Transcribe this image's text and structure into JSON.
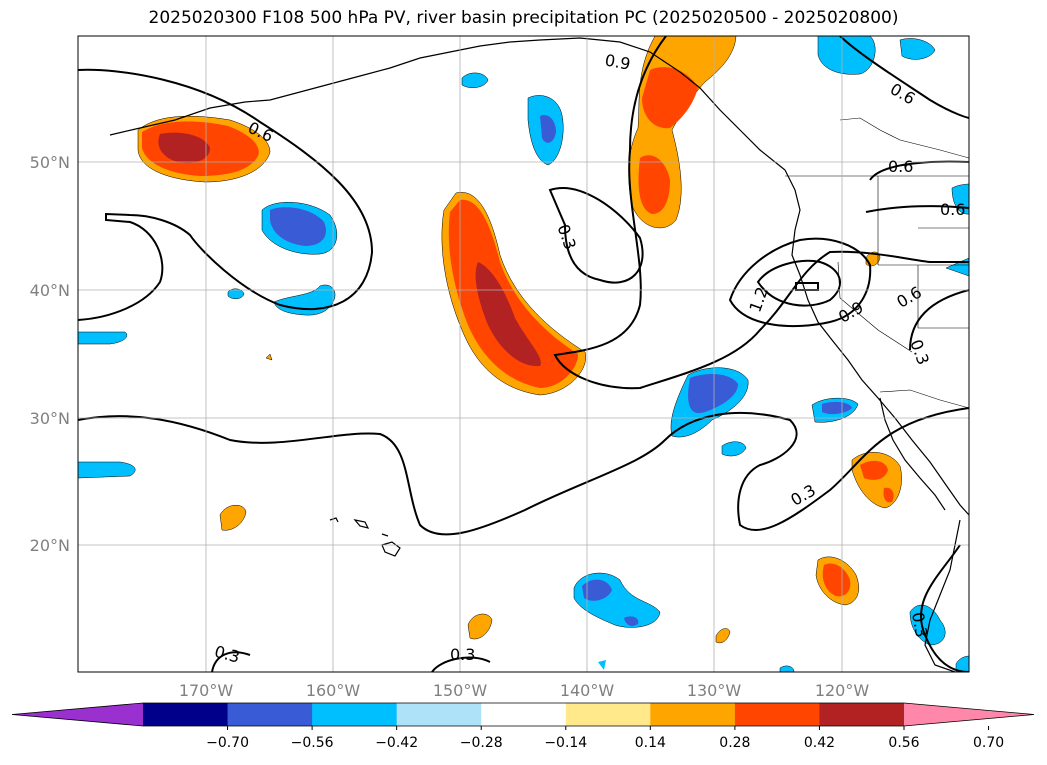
{
  "title": "2025020300 F108 500 hPa PV, river basin precipitation PC (2025020500 - 2025020800)",
  "map": {
    "lat_ticks": [
      "50°N",
      "40°N",
      "30°N",
      "20°N"
    ],
    "lon_ticks": [
      "170°W",
      "160°W",
      "150°W",
      "140°W",
      "130°W",
      "120°W"
    ],
    "contour_labels": [
      "0.9",
      "0.6",
      "0.6",
      "0.6",
      "0.6",
      "0.3",
      "1.2",
      "0.9",
      "0.6",
      "0.3",
      "0.3",
      "0.3",
      "0.3",
      "0.3"
    ]
  },
  "colorbar": {
    "tick_labels": [
      "−0.70",
      "−0.56",
      "−0.42",
      "−0.28",
      "−0.14",
      "0.14",
      "0.28",
      "0.42",
      "0.56",
      "0.70"
    ],
    "colors": [
      "#9b30d0",
      "#00008b",
      "#3a5bd6",
      "#00bfff",
      "#aee2f8",
      "#ffffff",
      "#ffe98a",
      "#ffa500",
      "#ff4500",
      "#b22222",
      "#ff88aa"
    ]
  }
}
